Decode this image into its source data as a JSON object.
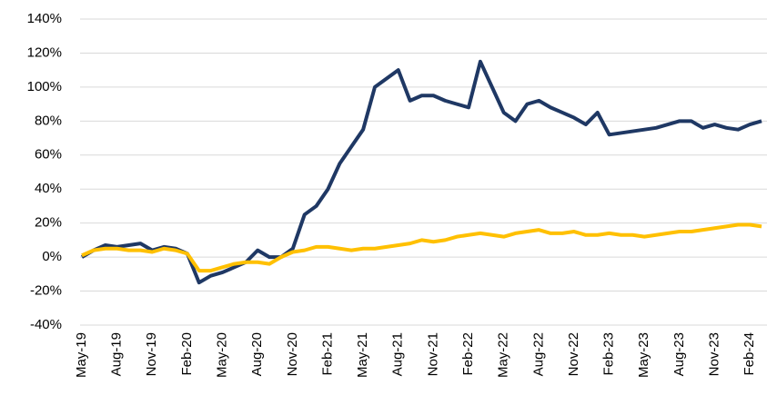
{
  "chart_data": {
    "type": "line",
    "categories": [
      "May-19",
      null,
      null,
      "Aug-19",
      null,
      null,
      "Nov-19",
      null,
      null,
      "Feb-20",
      null,
      null,
      "May-20",
      null,
      null,
      "Aug-20",
      null,
      null,
      "Nov-20",
      null,
      null,
      "Feb-21",
      null,
      null,
      "May-21",
      null,
      null,
      "Aug-21",
      null,
      null,
      "Nov-21",
      null,
      null,
      "Feb-22",
      null,
      null,
      "May-22",
      null,
      null,
      "Aug-22",
      null,
      null,
      "Nov-22",
      null,
      null,
      "Feb-23",
      null,
      null,
      "May-23",
      null,
      null,
      "Aug-23",
      null,
      null,
      "Nov-23",
      null,
      null,
      "Feb-24",
      null
    ],
    "series": [
      {
        "color": "#1f3864",
        "values": [
          0,
          4,
          7,
          6,
          7,
          8,
          4,
          6,
          5,
          2,
          -15,
          -11,
          -9,
          -6,
          -3,
          4,
          0,
          0,
          5,
          25,
          30,
          40,
          55,
          65,
          75,
          100,
          105,
          110,
          92,
          95,
          95,
          92,
          90,
          88,
          115,
          100,
          85,
          80,
          90,
          92,
          88,
          85,
          82,
          78,
          85,
          72,
          73,
          74,
          75,
          76,
          78,
          80,
          80,
          76,
          78,
          76,
          75,
          78,
          80
        ]
      },
      {
        "color": "#ffc000",
        "values": [
          1,
          4,
          5,
          5,
          4,
          4,
          3,
          5,
          4,
          2,
          -8,
          -8,
          -6,
          -4,
          -3,
          -3,
          -4,
          0,
          3,
          4,
          6,
          6,
          5,
          4,
          5,
          5,
          6,
          7,
          8,
          10,
          9,
          10,
          12,
          13,
          14,
          13,
          12,
          14,
          15,
          16,
          14,
          14,
          15,
          13,
          13,
          14,
          13,
          13,
          12,
          13,
          14,
          15,
          15,
          16,
          17,
          18,
          19,
          19,
          18
        ]
      }
    ],
    "ylim": [
      -40,
      140
    ],
    "yticks": [
      {
        "value": -40,
        "label": "-40%"
      },
      {
        "value": -20,
        "label": "-20%"
      },
      {
        "value": 0,
        "label": "0%"
      },
      {
        "value": 20,
        "label": "20%"
      },
      {
        "value": 40,
        "label": "40%"
      },
      {
        "value": 60,
        "label": "60%"
      },
      {
        "value": 80,
        "label": "80%"
      },
      {
        "value": 100,
        "label": "100%"
      },
      {
        "value": 120,
        "label": "120%"
      },
      {
        "value": 140,
        "label": "140%"
      }
    ],
    "grid": true
  }
}
